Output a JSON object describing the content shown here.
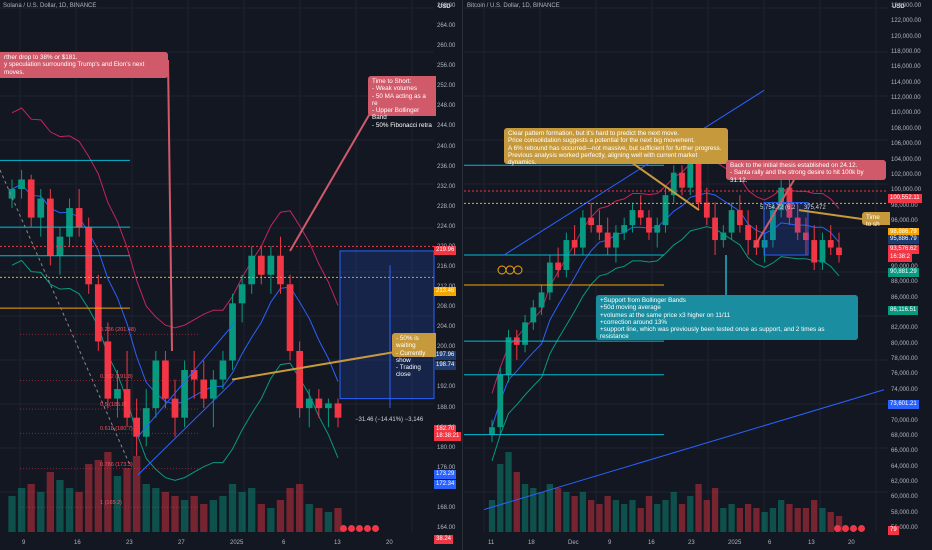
{
  "left_chart": {
    "header": "Solana / U.S. Dollar, 1D, BINANCE",
    "currency": "USD",
    "price_ticks": [
      "268.00",
      "264.00",
      "260.00",
      "256.00",
      "252.00",
      "248.00",
      "244.00",
      "240.00",
      "236.00",
      "232.00",
      "228.00",
      "224.00",
      "220.00",
      "216.00",
      "212.00",
      "208.00",
      "204.00",
      "200.00",
      "196.00",
      "192.00",
      "188.00",
      "184.00",
      "180.00",
      "176.00",
      "172.00",
      "168.00",
      "164.00"
    ],
    "time_ticks": [
      "9",
      "16",
      "23",
      "27",
      "2025",
      "6",
      "13",
      "20"
    ],
    "price_tags": [
      {
        "text": "219.96",
        "color": "#f23645"
      },
      {
        "text": "213.46",
        "color": "#f7a600"
      },
      {
        "text": "197.96",
        "color": "#1e3a6e"
      },
      {
        "text": "198.74",
        "color": "#1e3a6e"
      },
      {
        "text": "182.70",
        "color": "#f23645"
      },
      {
        "text": "18:38:21",
        "color": "#f23645"
      },
      {
        "text": "173.29",
        "color": "#2962ff"
      },
      {
        "text": "172.34",
        "color": "#2962ff"
      },
      {
        "text": "38.24",
        "color": "#f23645"
      }
    ],
    "note_top": "rther drop to 38% or $181.\ny speculation surrounding Trump's and Elon's next moves.",
    "note_short": "Time to Short:\n - Weak volumes\n - 50 MA acting as a re\n - Upper Bollinger Band\n - 50% Fibonacci retra",
    "note_waiting": "- 50% is waiting\n- Currently show\n- Trading close",
    "fib_labels": [
      "0.236 (201.48)",
      "0.382 (191.8)",
      "0.5 (185.8)",
      "0.618 (180.7)",
      "0.786 (173.3)",
      "1 (165.2)"
    ],
    "measure_text": "−31.46 (−14.41%) −3,146",
    "candles": [
      [
        230,
        234,
        228,
        232
      ],
      [
        232,
        236,
        230,
        234
      ],
      [
        234,
        235,
        224,
        226
      ],
      [
        226,
        232,
        222,
        230
      ],
      [
        230,
        232,
        216,
        218
      ],
      [
        218,
        224,
        214,
        222
      ],
      [
        222,
        230,
        220,
        228
      ],
      [
        228,
        232,
        222,
        224
      ],
      [
        224,
        226,
        210,
        212
      ],
      [
        212,
        214,
        198,
        200
      ],
      [
        200,
        204,
        186,
        188
      ],
      [
        188,
        194,
        184,
        190
      ],
      [
        190,
        198,
        182,
        184
      ],
      [
        184,
        188,
        176,
        180
      ],
      [
        180,
        190,
        178,
        186
      ],
      [
        186,
        198,
        184,
        196
      ],
      [
        196,
        198,
        186,
        188
      ],
      [
        188,
        192,
        180,
        184
      ],
      [
        184,
        196,
        182,
        194
      ],
      [
        194,
        198,
        188,
        192
      ],
      [
        192,
        196,
        186,
        188
      ],
      [
        188,
        194,
        182,
        192
      ],
      [
        192,
        198,
        190,
        196
      ],
      [
        196,
        210,
        194,
        208
      ],
      [
        208,
        214,
        204,
        212
      ],
      [
        212,
        220,
        210,
        218
      ],
      [
        218,
        220,
        212,
        214
      ],
      [
        214,
        220,
        210,
        218
      ],
      [
        218,
        222,
        210,
        212
      ],
      [
        212,
        214,
        196,
        198
      ],
      [
        198,
        200,
        184,
        186
      ],
      [
        186,
        190,
        182,
        188
      ],
      [
        188,
        190,
        184,
        186
      ],
      [
        186,
        188,
        182,
        187
      ],
      [
        187,
        188,
        182,
        184
      ]
    ],
    "volumes": [
      0.45,
      0.55,
      0.6,
      0.5,
      0.75,
      0.65,
      0.55,
      0.5,
      0.85,
      0.9,
      1.0,
      0.7,
      0.8,
      0.95,
      0.6,
      0.55,
      0.5,
      0.45,
      0.4,
      0.45,
      0.35,
      0.4,
      0.45,
      0.6,
      0.5,
      0.55,
      0.35,
      0.3,
      0.4,
      0.55,
      0.6,
      0.35,
      0.3,
      0.25,
      0.3
    ]
  },
  "right_chart": {
    "header": "Bitcoin / U.S. Dollar, 1D, BINANCE",
    "currency": "USD",
    "price_ticks": [
      "124,000.00",
      "122,000.00",
      "120,000.00",
      "118,000.00",
      "116,000.00",
      "114,000.00",
      "112,000.00",
      "110,000.00",
      "108,000.00",
      "106,000.00",
      "104,000.00",
      "102,000.00",
      "100,000.00",
      "98,000.00",
      "96,000.00",
      "94,000.00",
      "92,000.00",
      "90,000.00",
      "88,000.00",
      "86,000.00",
      "84,000.00",
      "82,000.00",
      "80,000.00",
      "78,000.00",
      "76,000.00",
      "74,000.00",
      "72,000.00",
      "70,000.00",
      "68,000.00",
      "66,000.00",
      "64,000.00",
      "62,000.00",
      "60,000.00",
      "58,000.00",
      "56,000.00"
    ],
    "time_ticks": [
      "11",
      "18",
      "Dec",
      "9",
      "16",
      "23",
      "2025",
      "6",
      "13",
      "20"
    ],
    "price_tags": [
      {
        "text": "100,552.11",
        "color": "#f23645"
      },
      {
        "text": "98,886.79",
        "color": "#f7a600"
      },
      {
        "text": "95,886.79",
        "color": "#1e3a6e"
      },
      {
        "text": "93,576.62",
        "color": "#f23645"
      },
      {
        "text": "16:38:2",
        "color": "#f23645"
      },
      {
        "text": "90,881.29",
        "color": "#089981"
      },
      {
        "text": "86,116.51",
        "color": "#089981"
      },
      {
        "text": "73,601.21",
        "color": "#2962ff"
      },
      {
        "text": "79",
        "color": "#f23645"
      }
    ],
    "note_pattern": "Clear pattern formation, but it's hard to predict the next move.\nPrice consolidation suggests a potential for the next big movement.\nA 6% rebound has occurred—not massive, but sufficient for further progress.\nPrevious analysis worked perfectly, aligning well with current market dynamics.",
    "note_back": "Back to the initial thesis established on 24.12.\n - Santa rally and the strong desire to hit 100k by 31.12.",
    "note_time": "Time to sh",
    "note_support": "+Support from Bollinger Bands\n+50d moving average\n+volumes at the same price x3 higher on 11/11\n+correction around 13%\n+support line, which was previously been tested once as support, and 2 times as resistance",
    "measure_text": "5,754.72 (6.2",
    "measure_text2": "375,472",
    "candles": [
      [
        68,
        70,
        67,
        69
      ],
      [
        69,
        77,
        68,
        76
      ],
      [
        76,
        82,
        75,
        81
      ],
      [
        81,
        82,
        78,
        80
      ],
      [
        80,
        84,
        79,
        83
      ],
      [
        83,
        86,
        82,
        85
      ],
      [
        85,
        88,
        84,
        87
      ],
      [
        87,
        92,
        86,
        91
      ],
      [
        91,
        93,
        89,
        90
      ],
      [
        90,
        95,
        89,
        94
      ],
      [
        94,
        96,
        92,
        93
      ],
      [
        93,
        98,
        92,
        97
      ],
      [
        97,
        99,
        95,
        96
      ],
      [
        96,
        98,
        94,
        95
      ],
      [
        95,
        97,
        92,
        93
      ],
      [
        93,
        96,
        91,
        95
      ],
      [
        95,
        97,
        94,
        96
      ],
      [
        96,
        99,
        95,
        98
      ],
      [
        98,
        100,
        96,
        97
      ],
      [
        97,
        98,
        94,
        95
      ],
      [
        95,
        97,
        93,
        96
      ],
      [
        96,
        101,
        95,
        100
      ],
      [
        100,
        104,
        99,
        103
      ],
      [
        103,
        104,
        100,
        101
      ],
      [
        101,
        108,
        100,
        106
      ],
      [
        106,
        107,
        98,
        99
      ],
      [
        99,
        101,
        96,
        97
      ],
      [
        97,
        99,
        92,
        94
      ],
      [
        94,
        96,
        93,
        95
      ],
      [
        95,
        99,
        94,
        98
      ],
      [
        98,
        100,
        95,
        96
      ],
      [
        96,
        98,
        92,
        94
      ],
      [
        94,
        96,
        92,
        93
      ],
      [
        93,
        95,
        91,
        94
      ],
      [
        94,
        99,
        93,
        98
      ],
      [
        98,
        102,
        97,
        101
      ],
      [
        101,
        103,
        96,
        97
      ],
      [
        97,
        99,
        94,
        95
      ],
      [
        95,
        97,
        92,
        94
      ],
      [
        94,
        96,
        90,
        91
      ],
      [
        91,
        95,
        90,
        94
      ],
      [
        94,
        96,
        92,
        93
      ],
      [
        93,
        95,
        91,
        92
      ]
    ],
    "volumes": [
      0.4,
      0.85,
      1.0,
      0.75,
      0.6,
      0.55,
      0.5,
      0.6,
      0.55,
      0.5,
      0.45,
      0.5,
      0.4,
      0.35,
      0.45,
      0.4,
      0.35,
      0.4,
      0.3,
      0.45,
      0.35,
      0.4,
      0.5,
      0.35,
      0.45,
      0.6,
      0.4,
      0.55,
      0.3,
      0.35,
      0.3,
      0.35,
      0.3,
      0.25,
      0.3,
      0.4,
      0.35,
      0.3,
      0.3,
      0.4,
      0.3,
      0.25,
      0.2
    ]
  },
  "colors": {
    "up": "#089981",
    "down": "#f23645",
    "bg": "#131722",
    "grid": "#1f2330",
    "blue": "#2962ff",
    "orange": "#f7a600"
  }
}
